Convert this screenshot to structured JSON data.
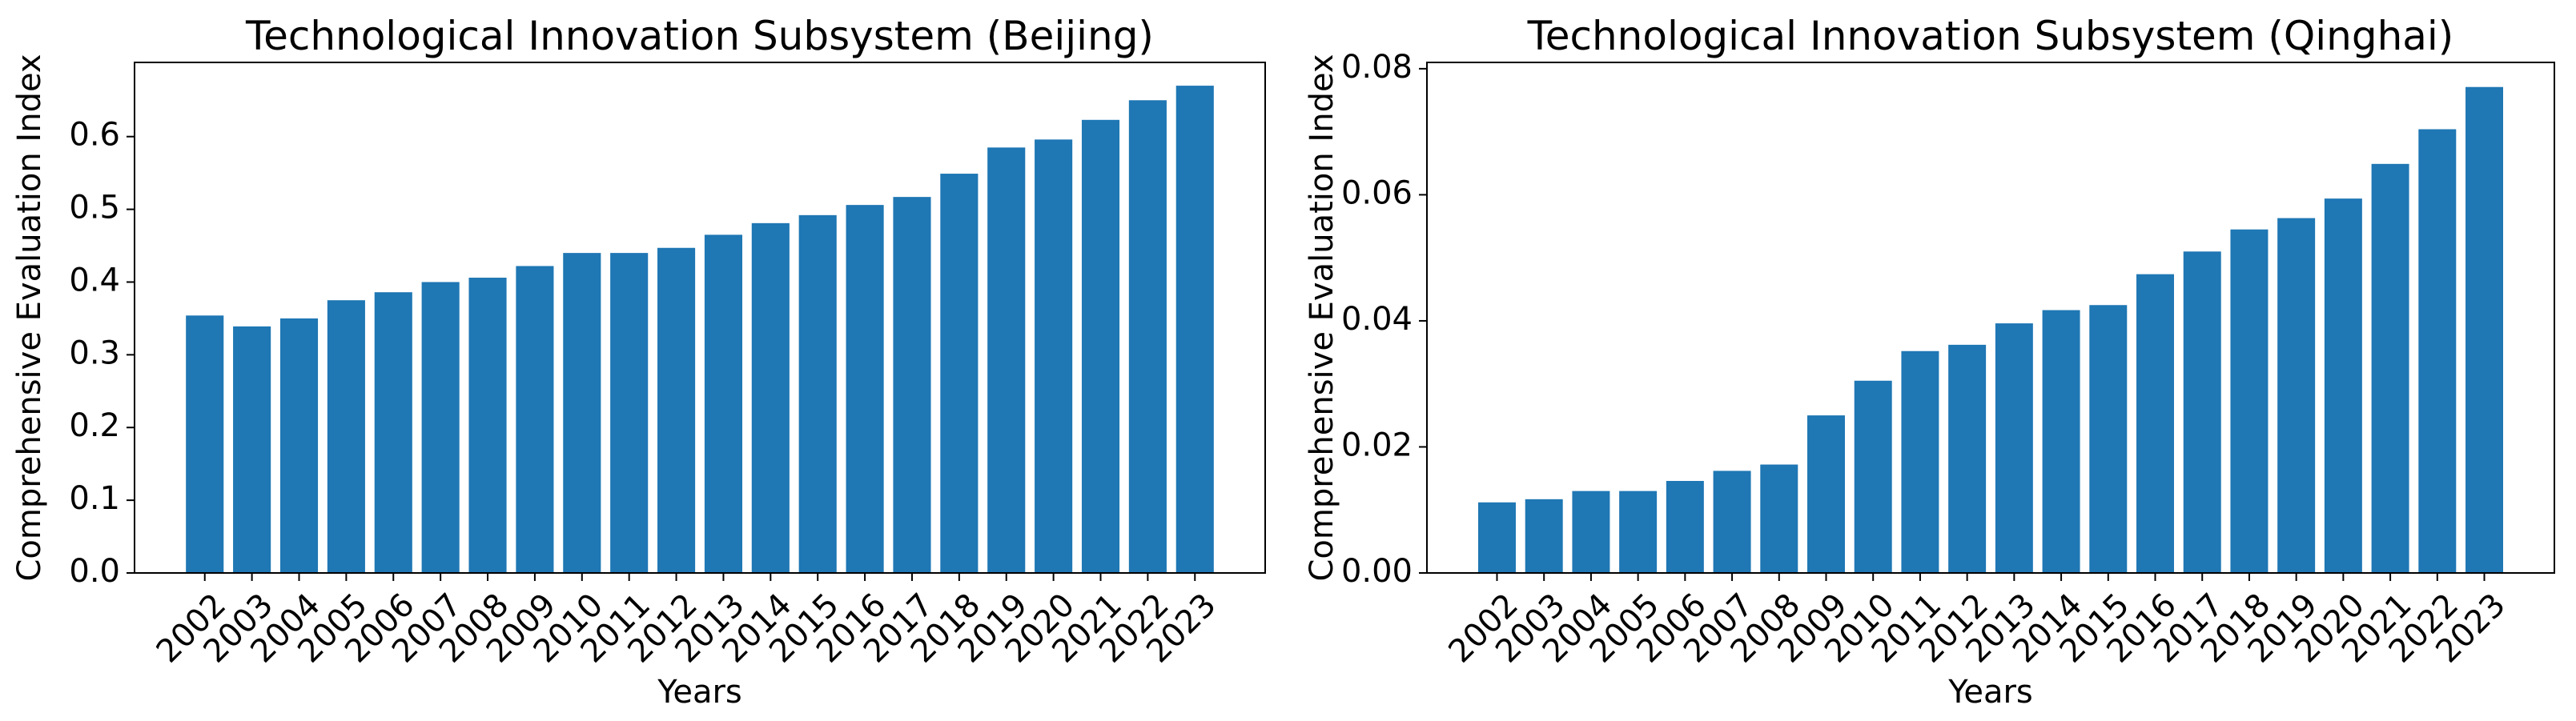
{
  "chart_data": [
    {
      "type": "bar",
      "title": "Technological Innovation Subsystem (Beijing)",
      "xlabel": "Years",
      "ylabel": "Comprehensive Evaluation Index",
      "color": "#1f77b4",
      "categories": [
        "2002",
        "2003",
        "2004",
        "2005",
        "2006",
        "2007",
        "2008",
        "2009",
        "2010",
        "2011",
        "2012",
        "2013",
        "2014",
        "2015",
        "2016",
        "2017",
        "2018",
        "2019",
        "2020",
        "2021",
        "2022",
        "2023"
      ],
      "values": [
        0.354,
        0.339,
        0.35,
        0.375,
        0.386,
        0.4,
        0.406,
        0.422,
        0.44,
        0.44,
        0.447,
        0.465,
        0.481,
        0.492,
        0.506,
        0.517,
        0.549,
        0.585,
        0.596,
        0.623,
        0.65,
        0.67
      ],
      "ylim": [
        0,
        0.702
      ],
      "yticks": [
        {
          "value": 0,
          "label": "0.0"
        },
        {
          "value": 0.1,
          "label": "0.1"
        },
        {
          "value": 0.2,
          "label": "0.2"
        },
        {
          "value": 0.3,
          "label": "0.3"
        },
        {
          "value": 0.4,
          "label": "0.4"
        },
        {
          "value": 0.5,
          "label": "0.5"
        },
        {
          "value": 0.6,
          "label": "0.6"
        }
      ]
    },
    {
      "type": "bar",
      "title": "Technological Innovation Subsystem (Qinghai)",
      "xlabel": "Years",
      "ylabel": "Comprehensive Evaluation Index",
      "color": "#1f77b4",
      "categories": [
        "2002",
        "2003",
        "2004",
        "2005",
        "2006",
        "2007",
        "2008",
        "2009",
        "2010",
        "2011",
        "2012",
        "2013",
        "2014",
        "2015",
        "2016",
        "2017",
        "2018",
        "2019",
        "2020",
        "2021",
        "2022",
        "2023"
      ],
      "values": [
        0.0112,
        0.0117,
        0.013,
        0.013,
        0.0146,
        0.0162,
        0.0172,
        0.025,
        0.0305,
        0.0352,
        0.0362,
        0.0396,
        0.0417,
        0.0425,
        0.0474,
        0.051,
        0.0545,
        0.0563,
        0.0594,
        0.0649,
        0.0704,
        0.0771
      ],
      "ylim": [
        0,
        0.081
      ],
      "yticks": [
        {
          "value": 0,
          "label": "0.00"
        },
        {
          "value": 0.02,
          "label": "0.02"
        },
        {
          "value": 0.04,
          "label": "0.04"
        },
        {
          "value": 0.06,
          "label": "0.06"
        },
        {
          "value": 0.08,
          "label": "0.08"
        }
      ]
    }
  ]
}
